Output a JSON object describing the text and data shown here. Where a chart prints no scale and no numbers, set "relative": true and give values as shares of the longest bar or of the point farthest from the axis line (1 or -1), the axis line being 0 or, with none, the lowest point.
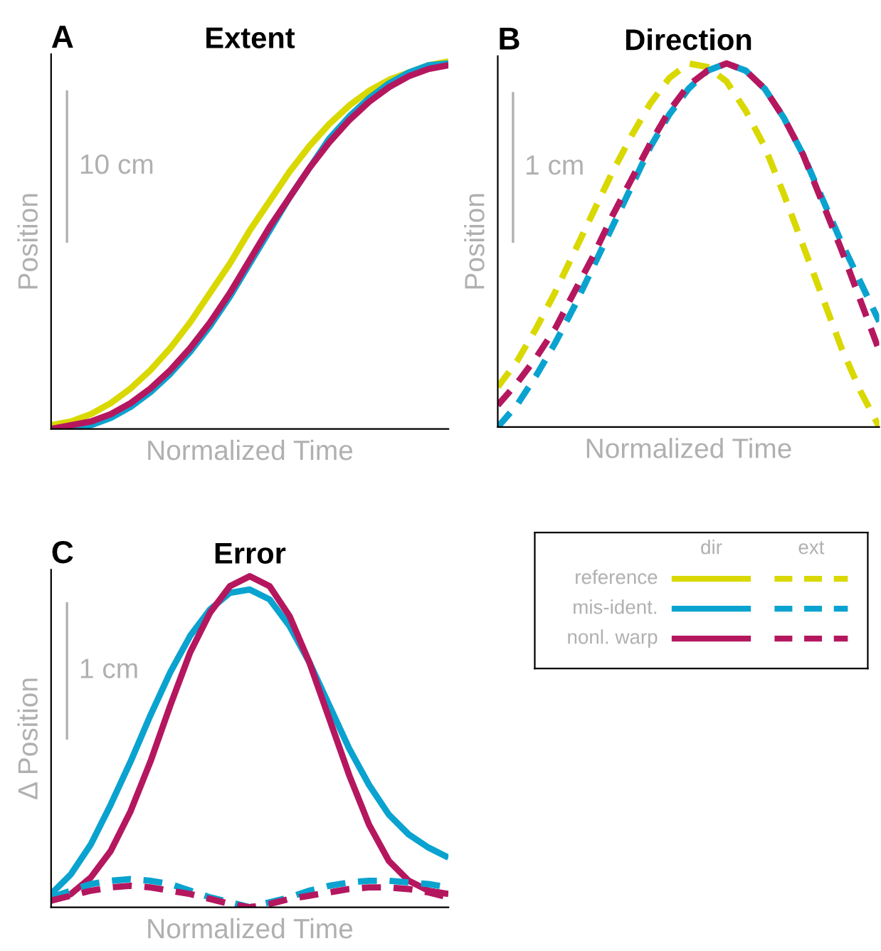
{
  "chart_data": [
    {
      "type": "line",
      "title": "Extent",
      "xlabel": "Normalized Time",
      "ylabel": "Position",
      "relative": true,
      "line_style": "solid",
      "legend": "bottom right",
      "legend_title": "dir",
      "annotations": [
        "A",
        "10 cm"
      ],
      "categories": [
        null,
        null,
        null,
        null,
        null,
        null,
        null,
        null,
        null,
        null,
        null,
        null,
        null,
        null,
        null,
        null,
        null,
        null,
        null,
        null,
        null
      ],
      "series": [
        {
          "name": "reference",
          "color": "#d9d800",
          "values": [
            0.01,
            0.02,
            0.04,
            0.07,
            0.11,
            0.16,
            0.22,
            0.29,
            0.37,
            0.45,
            0.54,
            0.62,
            0.7,
            0.77,
            0.83,
            0.88,
            0.92,
            0.95,
            0.97,
            0.99,
            1.0
          ]
        },
        {
          "name": "mis-ident.",
          "color": "#0aa3d0",
          "values": [
            0.0,
            0.0,
            0.01,
            0.03,
            0.06,
            0.1,
            0.15,
            0.21,
            0.28,
            0.36,
            0.45,
            0.54,
            0.63,
            0.71,
            0.79,
            0.85,
            0.9,
            0.94,
            0.97,
            0.99,
            0.995
          ]
        },
        {
          "name": "nonl. warp",
          "color": "#b5175f",
          "values": [
            0.0,
            0.01,
            0.02,
            0.04,
            0.07,
            0.11,
            0.16,
            0.22,
            0.29,
            0.37,
            0.46,
            0.55,
            0.63,
            0.71,
            0.78,
            0.84,
            0.89,
            0.93,
            0.96,
            0.98,
            0.99
          ]
        }
      ]
    },
    {
      "type": "line",
      "title": "Direction",
      "xlabel": "Normalized Time",
      "ylabel": "Position",
      "relative": true,
      "line_style": "dashed",
      "legend": "bottom right",
      "legend_title": "ext",
      "annotations": [
        "B",
        "1 cm"
      ],
      "categories": [
        null,
        null,
        null,
        null,
        null,
        null,
        null,
        null,
        null,
        null,
        null,
        null,
        null,
        null,
        null,
        null,
        null,
        null,
        null,
        null,
        null
      ],
      "series": [
        {
          "color": "#d9d800",
          "values": [
            0.11,
            0.18,
            0.27,
            0.37,
            0.48,
            0.59,
            0.7,
            0.8,
            0.89,
            0.96,
            1.0,
            0.99,
            0.95,
            0.87,
            0.77,
            0.64,
            0.5,
            0.36,
            0.22,
            0.1,
            0.0
          ]
        },
        {
          "color": "#0aa3d0",
          "values": [
            0.0,
            0.06,
            0.14,
            0.23,
            0.33,
            0.44,
            0.55,
            0.66,
            0.77,
            0.86,
            0.93,
            0.98,
            1.0,
            0.98,
            0.93,
            0.85,
            0.75,
            0.63,
            0.51,
            0.4,
            0.29
          ]
        },
        {
          "color": "#b5175f",
          "values": [
            0.06,
            0.12,
            0.19,
            0.27,
            0.37,
            0.47,
            0.58,
            0.68,
            0.78,
            0.87,
            0.94,
            0.98,
            1.0,
            0.98,
            0.93,
            0.85,
            0.75,
            0.62,
            0.49,
            0.35,
            0.21
          ]
        }
      ]
    },
    {
      "type": "line",
      "title": "Error",
      "xlabel": "Normalized Time",
      "ylabel": "Δ Position",
      "relative": true,
      "annotations": [
        "C",
        "1 cm"
      ],
      "categories": [
        null,
        null,
        null,
        null,
        null,
        null,
        null,
        null,
        null,
        null,
        null,
        null,
        null,
        null,
        null,
        null,
        null,
        null,
        null,
        null,
        null
      ],
      "series": [
        {
          "color": "#0aa3d0",
          "line_style": "solid",
          "values": [
            0.04,
            0.1,
            0.19,
            0.31,
            0.44,
            0.58,
            0.71,
            0.82,
            0.9,
            0.95,
            0.96,
            0.93,
            0.85,
            0.74,
            0.61,
            0.48,
            0.37,
            0.28,
            0.22,
            0.18,
            0.15
          ]
        },
        {
          "color": "#b5175f",
          "line_style": "solid",
          "values": [
            0.02,
            0.04,
            0.09,
            0.17,
            0.29,
            0.44,
            0.61,
            0.77,
            0.89,
            0.97,
            1.0,
            0.97,
            0.88,
            0.74,
            0.57,
            0.4,
            0.25,
            0.14,
            0.08,
            0.05,
            0.04
          ]
        },
        {
          "color": "#0aa3d0",
          "line_style": "dashed",
          "values": [
            0.03,
            0.05,
            0.07,
            0.08,
            0.085,
            0.08,
            0.07,
            0.05,
            0.03,
            0.015,
            0.0,
            0.015,
            0.03,
            0.05,
            0.065,
            0.075,
            0.08,
            0.08,
            0.075,
            0.07,
            0.06
          ]
        },
        {
          "color": "#b5175f",
          "line_style": "dashed",
          "values": [
            0.02,
            0.035,
            0.05,
            0.06,
            0.065,
            0.06,
            0.05,
            0.04,
            0.025,
            0.01,
            0.0,
            0.01,
            0.025,
            0.035,
            0.045,
            0.055,
            0.06,
            0.06,
            0.055,
            0.045,
            0.03
          ]
        }
      ]
    }
  ]
}
